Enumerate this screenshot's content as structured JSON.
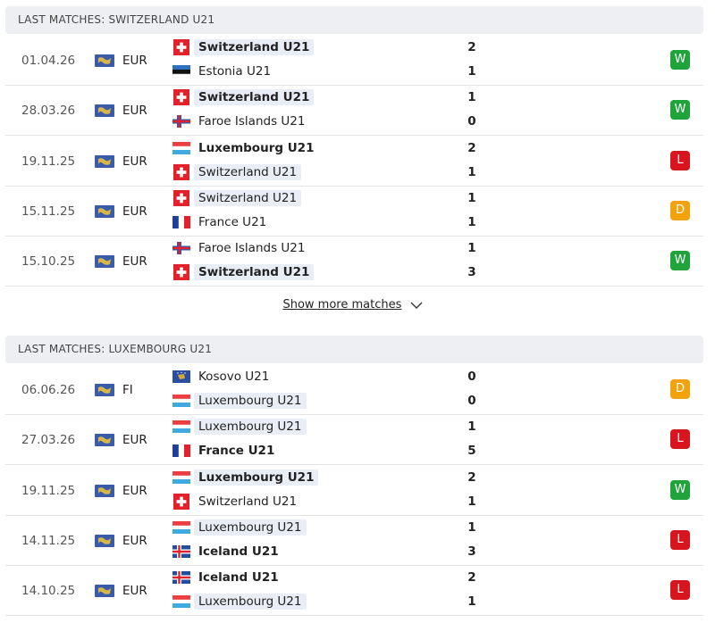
{
  "sections": [
    {
      "title": "LAST MATCHES: SWITZERLAND U21",
      "matches": [
        {
          "date": "01.04.26",
          "competition": "EUR",
          "home": {
            "name": "Switzerland U21",
            "score": 2
          },
          "away": {
            "name": "Estonia U21",
            "score": 1
          },
          "result": "W",
          "color": "#1fa33a"
        },
        {
          "date": "28.03.26",
          "competition": "EUR",
          "home": {
            "name": "Switzerland U21",
            "score": 1
          },
          "away": {
            "name": "Faroe Islands U21",
            "score": 0
          },
          "result": "W",
          "color": "#1fa33a"
        },
        {
          "date": "19.11.25",
          "competition": "EUR",
          "home": {
            "name": "Luxembourg U21",
            "score": 2
          },
          "away": {
            "name": "Switzerland U21",
            "score": 1
          },
          "result": "L",
          "color": "#d8151f"
        },
        {
          "date": "15.11.25",
          "competition": "EUR",
          "home": {
            "name": "Switzerland U21",
            "score": 1
          },
          "away": {
            "name": "France U21",
            "score": 1
          },
          "result": "D",
          "color": "#f2a20a"
        },
        {
          "date": "15.10.25",
          "competition": "EUR",
          "home": {
            "name": "Faroe Islands U21",
            "score": 1
          },
          "away": {
            "name": "Switzerland U21",
            "score": 3
          },
          "result": "W",
          "color": "#1fa33a"
        }
      ]
    },
    {
      "title": "LAST MATCHES: LUXEMBOURG U21",
      "matches": [
        {
          "date": "06.06.26",
          "competition": "FI",
          "home": {
            "name": "Kosovo U21",
            "score": 0
          },
          "away": {
            "name": "Luxembourg U21",
            "score": 0
          },
          "result": "D",
          "color": "#f2a20a"
        },
        {
          "date": "27.03.26",
          "competition": "EUR",
          "home": {
            "name": "Luxembourg U21",
            "score": 1
          },
          "away": {
            "name": "France U21",
            "score": 5
          },
          "result": "L",
          "color": "#d8151f"
        },
        {
          "date": "19.11.25",
          "competition": "EUR",
          "home": {
            "name": "Luxembourg U21",
            "score": 2
          },
          "away": {
            "name": "Switzerland U21",
            "score": 1
          },
          "result": "W",
          "color": "#1fa33a"
        },
        {
          "date": "14.11.25",
          "competition": "EUR",
          "home": {
            "name": "Luxembourg U21",
            "score": 1
          },
          "away": {
            "name": "Iceland U21",
            "score": 3
          },
          "result": "L",
          "color": "#d8151f"
        },
        {
          "date": "14.10.25",
          "competition": "EUR",
          "home": {
            "name": "Iceland U21",
            "score": 2
          },
          "away": {
            "name": "Luxembourg U21",
            "score": 1
          },
          "result": "L",
          "color": "#d8151f"
        }
      ]
    }
  ],
  "show_more": "Show more matches"
}
